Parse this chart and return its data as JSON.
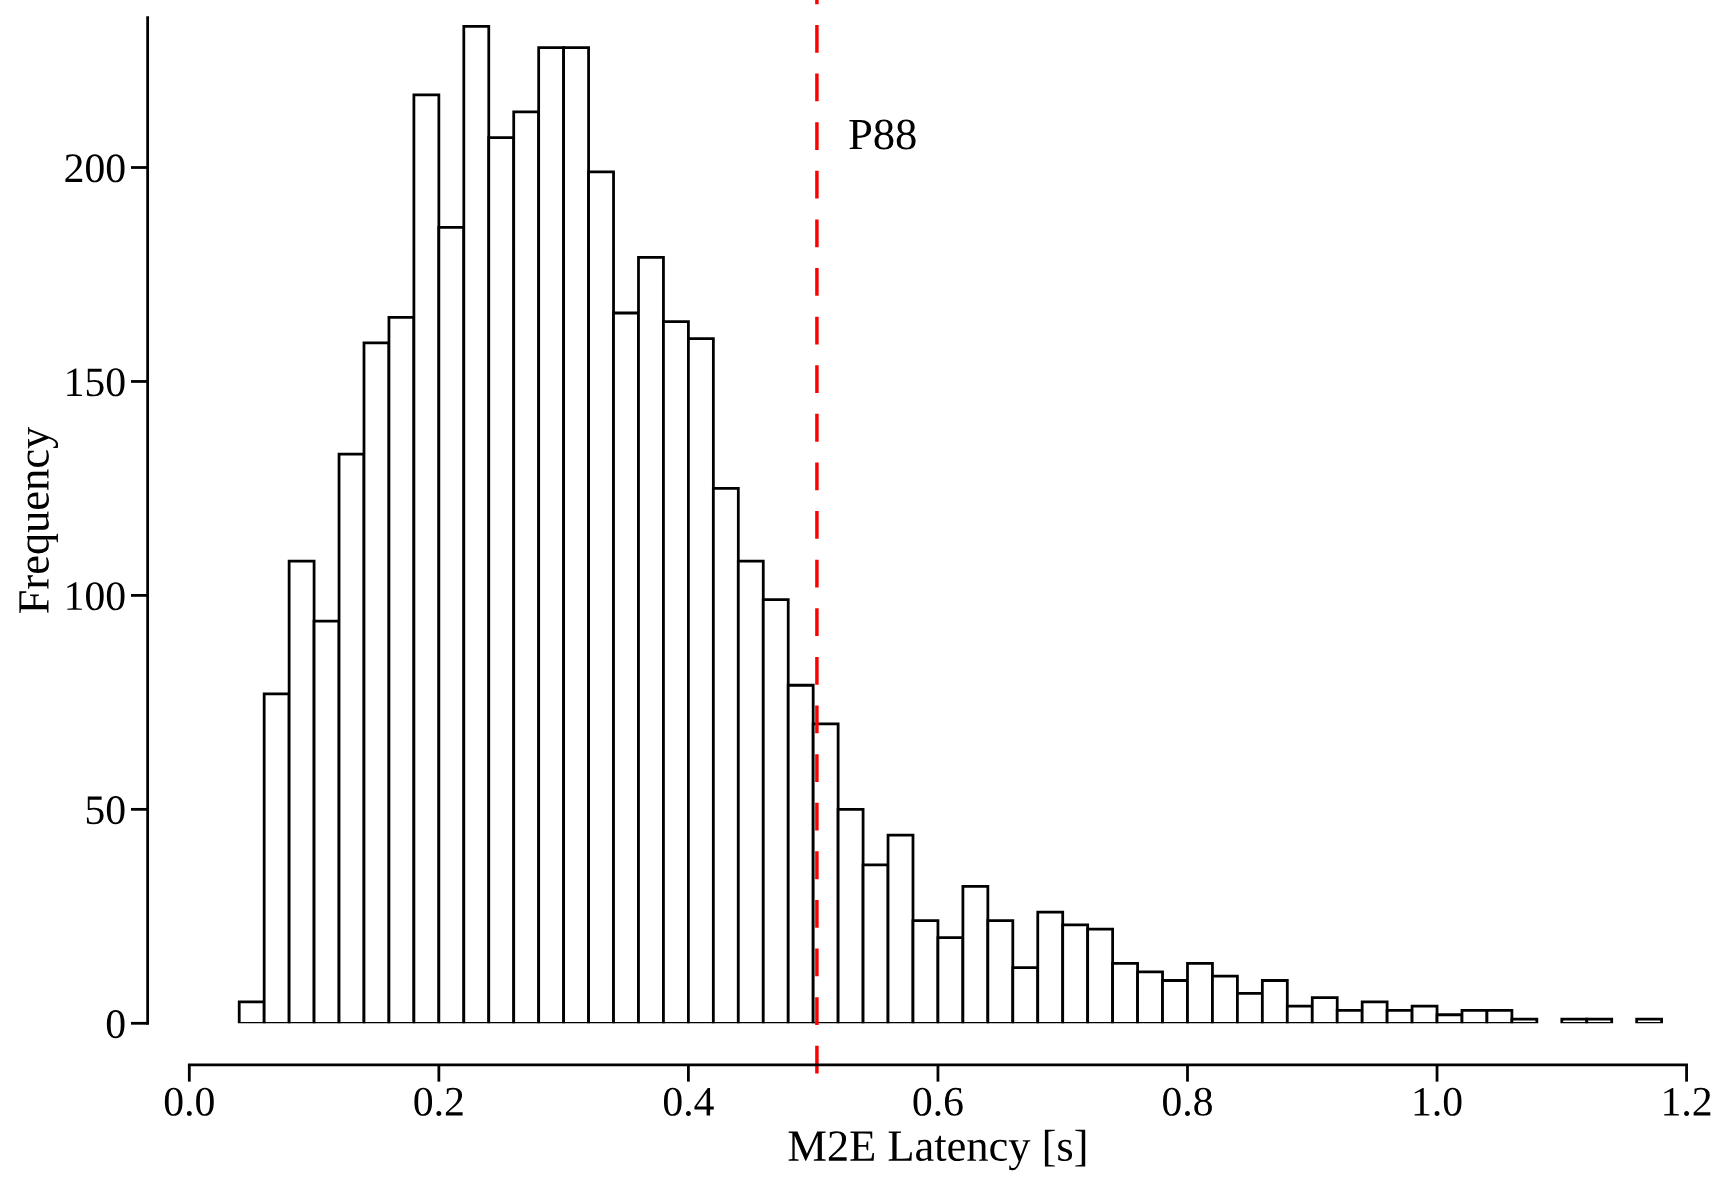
{
  "chart_data": {
    "type": "histogram",
    "xlabel": "M2E Latency [s]",
    "ylabel": "Frequency",
    "bins": [
      0.04,
      0.06,
      0.08,
      0.1,
      0.12,
      0.14,
      0.16,
      0.18,
      0.2,
      0.22,
      0.24,
      0.26,
      0.28,
      0.3,
      0.32,
      0.34,
      0.36,
      0.38,
      0.4,
      0.42,
      0.44,
      0.46,
      0.48,
      0.5,
      0.52,
      0.54,
      0.56,
      0.58,
      0.6,
      0.62,
      0.64,
      0.66,
      0.68,
      0.7,
      0.72,
      0.74,
      0.76,
      0.78,
      0.8,
      0.82,
      0.84,
      0.86,
      0.88,
      0.9,
      0.92,
      0.94,
      0.96,
      0.98,
      1.0,
      1.02,
      1.04,
      1.06,
      1.08,
      1.1,
      1.12,
      1.14,
      1.16,
      1.18
    ],
    "values": [
      5,
      77,
      108,
      94,
      133,
      159,
      165,
      217,
      186,
      233,
      207,
      213,
      228,
      228,
      199,
      166,
      179,
      164,
      160,
      125,
      108,
      99,
      79,
      70,
      50,
      37,
      44,
      24,
      20,
      32,
      24,
      13,
      26,
      23,
      22,
      14,
      12,
      10,
      14,
      11,
      7,
      10,
      4,
      6,
      3,
      5,
      3,
      4,
      2,
      3,
      3,
      1,
      0,
      1,
      1,
      0,
      1
    ],
    "color": "#ffffff",
    "xlim": [
      0,
      1.2
    ],
    "xticks": [
      {
        "value": 0,
        "label": "0.0"
      },
      0.2,
      0.4,
      0.6,
      0.8,
      {
        "value": 1,
        "label": "1.0"
      },
      1.2
    ],
    "ylim": [
      0,
      235
    ],
    "yticks": [
      0,
      50,
      100,
      150,
      200
    ],
    "ref_lines": [
      {
        "axis": "x",
        "value": 0.503,
        "label": "P88",
        "color": "#ff0000",
        "line_style": "dashed"
      }
    ],
    "grid": false
  }
}
